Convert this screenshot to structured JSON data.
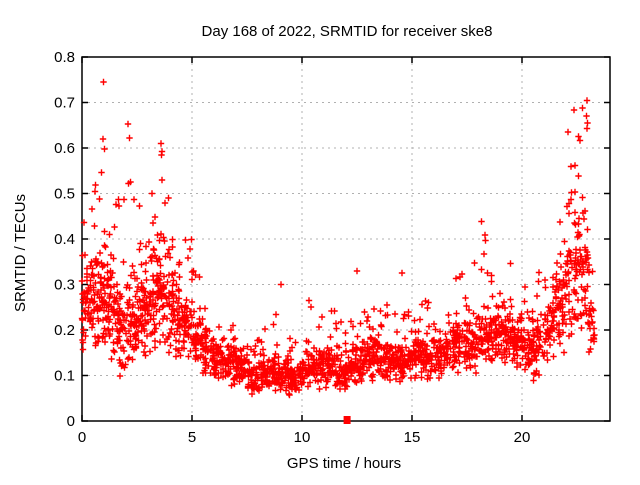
{
  "chart_data": {
    "type": "scatter",
    "title": "Day 168 of 2022, SRMTID for receiver ske8",
    "xlabel": "GPS time / hours",
    "ylabel": "SRMTID / TECUs",
    "xlim": [
      0,
      24
    ],
    "ylim": [
      0,
      0.8
    ],
    "xticks": [
      0,
      5,
      10,
      15,
      20
    ],
    "xtick_labels": [
      "0",
      "5",
      "10",
      "15",
      "20"
    ],
    "yticks": [
      0,
      0.1,
      0.2,
      0.3,
      0.4,
      0.5,
      0.6,
      0.7,
      0.8
    ],
    "ytick_labels": [
      "0",
      "0.1",
      "0.2",
      "0.3",
      "0.4",
      "0.5",
      "0.6",
      "0.7",
      "0.8"
    ],
    "grid": true,
    "grid_style": "dashed",
    "legend_position": "none",
    "series_name": "SRMTID",
    "marker": {
      "shape": "plus",
      "color": "#ff0000",
      "size": 7
    },
    "colors": {
      "points": "#ff0000",
      "grid": "#b0b0b0",
      "border": "#000000",
      "background": "#ffffff",
      "text": "#000000"
    },
    "seed": 168,
    "bins_format": "[t_start_hour, t_end_hour, v_low_TECU, v_mid_TECU, v_max_TECU, n_points] — dense band around v_mid with sparse upward tail to v_max",
    "density_profile": [
      [
        0.0,
        0.5,
        0.14,
        0.26,
        0.47,
        60
      ],
      [
        0.5,
        1.0,
        0.13,
        0.26,
        0.62,
        60
      ],
      [
        1.0,
        1.5,
        0.1,
        0.24,
        0.58,
        60
      ],
      [
        1.5,
        2.0,
        0.08,
        0.2,
        0.5,
        55
      ],
      [
        2.0,
        2.5,
        0.08,
        0.21,
        0.64,
        55
      ],
      [
        2.5,
        3.0,
        0.1,
        0.24,
        0.55,
        55
      ],
      [
        3.0,
        3.5,
        0.12,
        0.27,
        0.5,
        55
      ],
      [
        3.5,
        4.0,
        0.12,
        0.27,
        0.6,
        55
      ],
      [
        4.0,
        4.5,
        0.12,
        0.24,
        0.44,
        50
      ],
      [
        4.5,
        5.0,
        0.12,
        0.21,
        0.4,
        50
      ],
      [
        5.0,
        5.5,
        0.1,
        0.18,
        0.33,
        45
      ],
      [
        5.5,
        6.0,
        0.08,
        0.15,
        0.3,
        45
      ],
      [
        6.0,
        6.5,
        0.07,
        0.13,
        0.25,
        45
      ],
      [
        6.5,
        7.0,
        0.06,
        0.12,
        0.22,
        45
      ],
      [
        7.0,
        7.5,
        0.06,
        0.11,
        0.2,
        45
      ],
      [
        7.5,
        8.0,
        0.05,
        0.1,
        0.18,
        45
      ],
      [
        8.0,
        8.5,
        0.05,
        0.1,
        0.22,
        45
      ],
      [
        8.5,
        9.0,
        0.05,
        0.1,
        0.24,
        45
      ],
      [
        9.0,
        9.5,
        0.05,
        0.1,
        0.27,
        45
      ],
      [
        9.5,
        10.0,
        0.05,
        0.1,
        0.2,
        45
      ],
      [
        10.0,
        10.5,
        0.06,
        0.11,
        0.28,
        45
      ],
      [
        10.5,
        11.0,
        0.06,
        0.12,
        0.24,
        45
      ],
      [
        11.0,
        11.5,
        0.06,
        0.12,
        0.3,
        45
      ],
      [
        11.5,
        12.0,
        0.05,
        0.11,
        0.26,
        45
      ],
      [
        12.0,
        12.5,
        0.06,
        0.12,
        0.28,
        45
      ],
      [
        12.5,
        13.0,
        0.07,
        0.13,
        0.28,
        45
      ],
      [
        13.0,
        13.5,
        0.07,
        0.14,
        0.36,
        45
      ],
      [
        13.5,
        14.0,
        0.07,
        0.13,
        0.3,
        45
      ],
      [
        14.0,
        14.5,
        0.07,
        0.13,
        0.26,
        45
      ],
      [
        14.5,
        15.0,
        0.08,
        0.13,
        0.33,
        45
      ],
      [
        15.0,
        15.5,
        0.08,
        0.14,
        0.26,
        45
      ],
      [
        15.5,
        16.0,
        0.08,
        0.14,
        0.28,
        45
      ],
      [
        16.0,
        16.5,
        0.08,
        0.15,
        0.29,
        45
      ],
      [
        16.5,
        17.0,
        0.09,
        0.16,
        0.3,
        45
      ],
      [
        17.0,
        17.5,
        0.09,
        0.17,
        0.37,
        45
      ],
      [
        17.5,
        18.0,
        0.09,
        0.17,
        0.37,
        45
      ],
      [
        18.0,
        18.5,
        0.1,
        0.18,
        0.44,
        50
      ],
      [
        18.5,
        19.0,
        0.1,
        0.19,
        0.38,
        50
      ],
      [
        19.0,
        19.5,
        0.1,
        0.19,
        0.35,
        50
      ],
      [
        19.5,
        20.0,
        0.1,
        0.18,
        0.33,
        45
      ],
      [
        20.0,
        20.5,
        0.08,
        0.16,
        0.3,
        45
      ],
      [
        20.5,
        21.0,
        0.06,
        0.15,
        0.33,
        45
      ],
      [
        21.0,
        21.5,
        0.1,
        0.2,
        0.38,
        45
      ],
      [
        21.5,
        22.0,
        0.12,
        0.25,
        0.48,
        50
      ],
      [
        22.0,
        22.5,
        0.15,
        0.32,
        0.66,
        55
      ],
      [
        22.5,
        23.0,
        0.15,
        0.34,
        0.7,
        55
      ],
      [
        23.0,
        23.3,
        0.12,
        0.2,
        0.35,
        25
      ]
    ],
    "outliers": [
      [
        0.97,
        0.745
      ],
      [
        0.95,
        0.62
      ],
      [
        1.02,
        0.598
      ],
      [
        2.08,
        0.653
      ],
      [
        2.15,
        0.622
      ],
      [
        3.58,
        0.61
      ],
      [
        3.62,
        0.585
      ],
      [
        9.05,
        0.3
      ],
      [
        12.5,
        0.33
      ],
      [
        14.55,
        0.325
      ],
      [
        22.36,
        0.684
      ],
      [
        22.93,
        0.67
      ],
      [
        22.96,
        0.704
      ],
      [
        22.98,
        0.655
      ]
    ],
    "zero_marker": {
      "t": 12.05,
      "v": 0.0,
      "shape": "filled-square"
    }
  }
}
